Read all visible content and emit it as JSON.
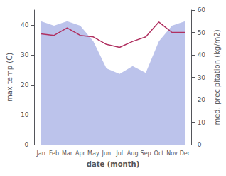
{
  "chart_data": {
    "type": "line",
    "categories": [
      "Jan",
      "Feb",
      "Mar",
      "Apr",
      "May",
      "Jun",
      "Jul",
      "Aug",
      "Sep",
      "Oct",
      "Nov",
      "Dec"
    ],
    "series": [
      {
        "type": "area",
        "axis": "y2",
        "color": "#b0b8e8",
        "values": [
          55.0,
          53.0,
          55.0,
          53.0,
          46.0,
          34.0,
          31.5,
          35.0,
          32.0,
          46.0,
          53.0,
          55.0
        ]
      },
      {
        "type": "line",
        "axis": "y",
        "color": "#b03060",
        "values": [
          37.0,
          36.5,
          39.0,
          36.5,
          36.0,
          33.5,
          32.5,
          34.5,
          36.0,
          41.0,
          37.5,
          37.5
        ]
      }
    ],
    "xlabel": "date (month)",
    "ylabel": "max temp (C)",
    "y2label": "med. precipitation (kg/m2)",
    "ylim": [
      0,
      45
    ],
    "yticks": [
      0,
      10,
      20,
      30,
      40
    ],
    "y2lim": [
      0,
      60
    ],
    "y2ticks": [
      0,
      10,
      20,
      30,
      40,
      50,
      60
    ],
    "grid": false
  }
}
